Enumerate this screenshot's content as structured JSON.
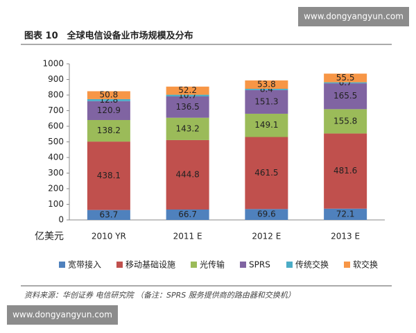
{
  "watermark_top": "www.dongyangyun.com",
  "watermark_bottom": "www.dongyangyun.com",
  "source": "资料来源：华创证券 电信研究院 （备注：SPRS 服务提供商的路由器和交换机）",
  "chart_data": {
    "type": "stacked_bar",
    "title": "图表 10　全球电信设备业市场规模及分布",
    "y_unit": "亿美元",
    "categories": [
      "2010 YR",
      "2011 E",
      "2012 E",
      "2013 E"
    ],
    "series": [
      {
        "name": "宽带接入",
        "color": "#4f81bd",
        "values": [
          63.7,
          66.7,
          69.6,
          72.1
        ]
      },
      {
        "name": "移动基础设施",
        "color": "#c0504d",
        "values": [
          438.1,
          444.8,
          461.5,
          481.6
        ]
      },
      {
        "name": "光传输",
        "color": "#9bbb59",
        "values": [
          138.2,
          143.2,
          149.1,
          155.8
        ]
      },
      {
        "name": "SPRS",
        "color": "#8064a2",
        "values": [
          120.9,
          136.5,
          151.3,
          165.5
        ]
      },
      {
        "name": "传统交换",
        "color": "#4bacc6",
        "values": [
          12.8,
          10.7,
          8.4,
          6.7
        ]
      },
      {
        "name": "软交换",
        "color": "#f79646",
        "values": [
          50.8,
          52.2,
          53.8,
          55.5
        ]
      }
    ],
    "ylim": [
      0,
      1000
    ],
    "yticks": [
      0,
      100,
      200,
      300,
      400,
      500,
      600,
      700,
      800,
      900,
      1000
    ],
    "grid": false,
    "legend": "bottom"
  }
}
